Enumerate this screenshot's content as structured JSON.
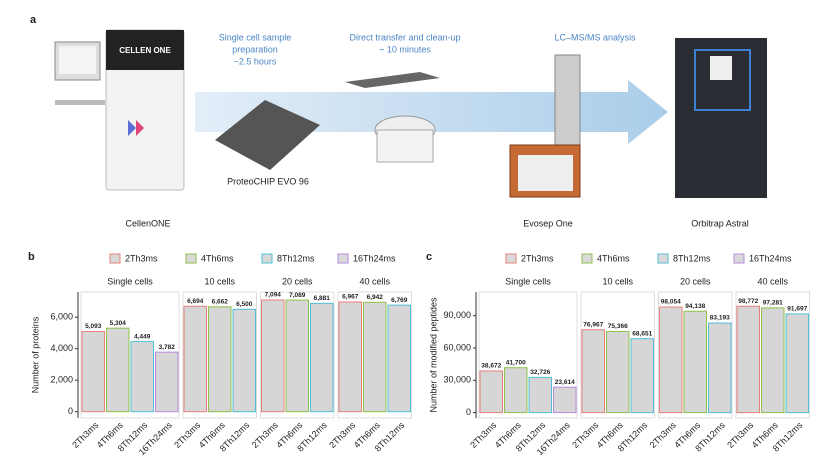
{
  "panel_a": {
    "label": "a",
    "steps": [
      [
        "Single cell sample",
        "preparation",
        "~2.5 hours"
      ],
      [
        "Direct transfer and clean-up",
        "~ 10 minutes"
      ],
      [
        "LC–MS/MS analysis"
      ]
    ],
    "instruments": [
      "CellenONE",
      "ProteoCHIP EVO 96",
      "Evosep One",
      "Orbitrap Astral"
    ],
    "device_text": "CELLEN ONE"
  },
  "chart_data": [
    {
      "type": "bar",
      "panel": "b",
      "ylabel": "Number of proteins",
      "categories": [
        "Single cells",
        "10 cells",
        "20 cells",
        "40 cells"
      ],
      "series": [
        {
          "name": "2Th3ms",
          "color": "#e8807c",
          "values": [
            5093,
            6694,
            7094,
            6967
          ],
          "value_labels": [
            "5,093",
            "6,694",
            "7,094",
            "6,967"
          ]
        },
        {
          "name": "4Th6ms",
          "color": "#8fc04a",
          "values": [
            5304,
            6662,
            7089,
            6942
          ],
          "value_labels": [
            "5,304",
            "6,662",
            "7,089",
            "6,942"
          ]
        },
        {
          "name": "8Th12ms",
          "color": "#4fc1d6",
          "values": [
            4449,
            6500,
            6881,
            6769
          ],
          "value_labels": [
            "4,449",
            "6,500",
            "6,881",
            "6,769"
          ]
        },
        {
          "name": "16Th24ms",
          "color": "#b98ae0",
          "values": [
            3782,
            null,
            null,
            null
          ],
          "value_labels": [
            "3,782",
            null,
            null,
            null
          ]
        }
      ],
      "ylim": [
        -400,
        7600
      ],
      "yticks": [
        0,
        {
          "value": 2000,
          "label": "2,000"
        },
        {
          "value": 4000,
          "label": "4,000"
        },
        {
          "value": 6000,
          "label": "6,000"
        }
      ]
    },
    {
      "type": "bar",
      "panel": "c",
      "ylabel": "Number of modified peptides",
      "categories": [
        "Single cells",
        "10 cells",
        "20 cells",
        "40 cells"
      ],
      "series": [
        {
          "name": "2Th3ms",
          "color": "#e8807c",
          "values": [
            38672,
            76967,
            98054,
            98772
          ],
          "value_labels": [
            "38,672",
            "76,967",
            "98,054",
            "98,772"
          ]
        },
        {
          "name": "4Th6ms",
          "color": "#8fc04a",
          "values": [
            41700,
            75366,
            94138,
            97281
          ],
          "value_labels": [
            "41,700",
            "75,366",
            "94,138",
            "97,281"
          ]
        },
        {
          "name": "8Th12ms",
          "color": "#4fc1d6",
          "values": [
            32726,
            68651,
            83193,
            91697
          ],
          "value_labels": [
            "32,726",
            "68,651",
            "83,193",
            "91,697"
          ]
        },
        {
          "name": "16Th24ms",
          "color": "#b98ae0",
          "values": [
            23614,
            null,
            null,
            null
          ],
          "value_labels": [
            "23,614",
            null,
            null,
            null
          ]
        }
      ],
      "ylim": [
        -5000,
        112000
      ],
      "yticks": [
        0,
        {
          "value": 30000,
          "label": "30,000"
        },
        {
          "value": 60000,
          "label": "60,000"
        },
        {
          "value": 90000,
          "label": "90,000"
        }
      ]
    }
  ]
}
